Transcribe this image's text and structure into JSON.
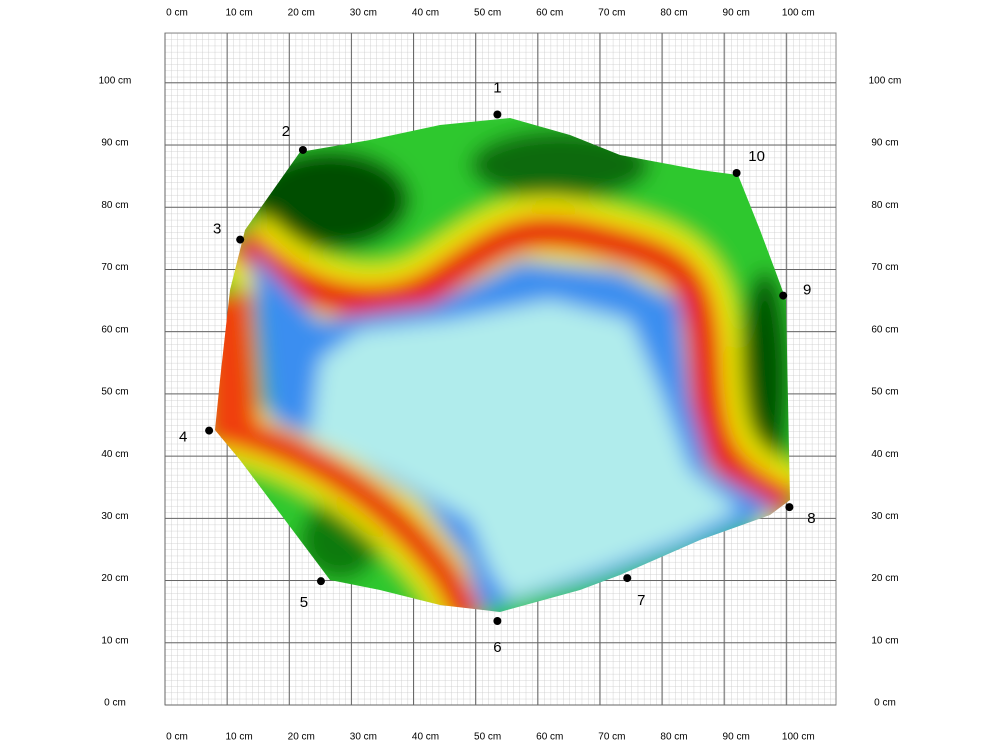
{
  "chart_data": {
    "type": "scatter",
    "xlim": [
      0,
      108
    ],
    "ylim": [
      0,
      108
    ],
    "xticks": [
      {
        "value": 0,
        "label": "0 cm"
      },
      {
        "value": 10,
        "label": "10 cm"
      },
      {
        "value": 20,
        "label": "20 cm"
      },
      {
        "value": 30,
        "label": "30 cm"
      },
      {
        "value": 40,
        "label": "40 cm"
      },
      {
        "value": 50,
        "label": "50 cm"
      },
      {
        "value": 60,
        "label": "60 cm"
      },
      {
        "value": 70,
        "label": "70 cm"
      },
      {
        "value": 80,
        "label": "80 cm"
      },
      {
        "value": 90,
        "label": "90 cm"
      },
      {
        "value": 100,
        "label": "100 cm"
      }
    ],
    "yticks": [
      {
        "value": 0,
        "label": "0 cm"
      },
      {
        "value": 10,
        "label": "10 cm"
      },
      {
        "value": 20,
        "label": "20 cm"
      },
      {
        "value": 30,
        "label": "30 cm"
      },
      {
        "value": 40,
        "label": "40 cm"
      },
      {
        "value": 50,
        "label": "50 cm"
      },
      {
        "value": 60,
        "label": "60 cm"
      },
      {
        "value": 70,
        "label": "70 cm"
      },
      {
        "value": 80,
        "label": "80 cm"
      },
      {
        "value": 90,
        "label": "90 cm"
      },
      {
        "value": 100,
        "label": "100 cm"
      }
    ],
    "grid": true,
    "color": "#000000",
    "labels": [
      "1",
      "2",
      "3",
      "4",
      "5",
      "6",
      "7",
      "8",
      "9",
      "10"
    ],
    "x": [
      53.5,
      22.2,
      12.1,
      7.1,
      25.1,
      53.5,
      74.4,
      100.5,
      99.5,
      92
    ],
    "values": [
      94.9,
      89.2,
      74.8,
      44.1,
      19.9,
      13.5,
      20.4,
      31.8,
      65.8,
      85.5
    ]
  }
}
